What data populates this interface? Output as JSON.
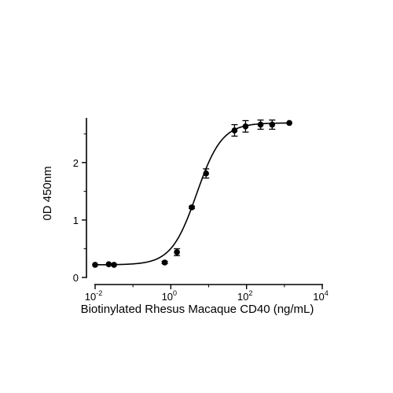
{
  "chart_data": {
    "type": "scatter",
    "xlabel": "Biotinylated Rhesus Macaque CD40 (ng/mL)",
    "ylabel": "0D 450nm",
    "x_scale": "log10",
    "xlim": [
      0.01,
      10000
    ],
    "ylim": [
      0,
      2.75
    ],
    "x_ticks": [
      {
        "base": "10",
        "exp": "-2",
        "value": 0.01
      },
      {
        "base": "10",
        "exp": "0",
        "value": 1
      },
      {
        "base": "10",
        "exp": "2",
        "value": 100
      },
      {
        "base": "10",
        "exp": "4",
        "value": 10000
      }
    ],
    "y_ticks": [
      {
        "label": "0",
        "value": 0
      },
      {
        "label": "1",
        "value": 1
      },
      {
        "label": "2",
        "value": 2
      }
    ],
    "grid": false,
    "legend": "none",
    "color": "#000000",
    "series": [
      {
        "points": [
          {
            "x": 0.01,
            "y": 0.22,
            "err": 0.01
          },
          {
            "x": 0.0229,
            "y": 0.23,
            "err": 0.01
          },
          {
            "x": 0.0316,
            "y": 0.22,
            "err": 0.01
          },
          {
            "x": 0.69,
            "y": 0.26,
            "err": 0.02
          },
          {
            "x": 1.45,
            "y": 0.44,
            "err": 0.06
          },
          {
            "x": 3.59,
            "y": 1.22,
            "err": 0.02
          },
          {
            "x": 8.53,
            "y": 1.81,
            "err": 0.08
          },
          {
            "x": 48.2,
            "y": 2.56,
            "err": 0.1
          },
          {
            "x": 94.2,
            "y": 2.63,
            "err": 0.1
          },
          {
            "x": 235,
            "y": 2.66,
            "err": 0.08
          },
          {
            "x": 475,
            "y": 2.66,
            "err": 0.08
          },
          {
            "x": 1350,
            "y": 2.69,
            "err": 0.01
          }
        ]
      }
    ],
    "fit": {
      "model": "4PL",
      "bottom": 0.22,
      "top": 2.69,
      "ec50": 4.8,
      "hill": 1.3
    }
  }
}
